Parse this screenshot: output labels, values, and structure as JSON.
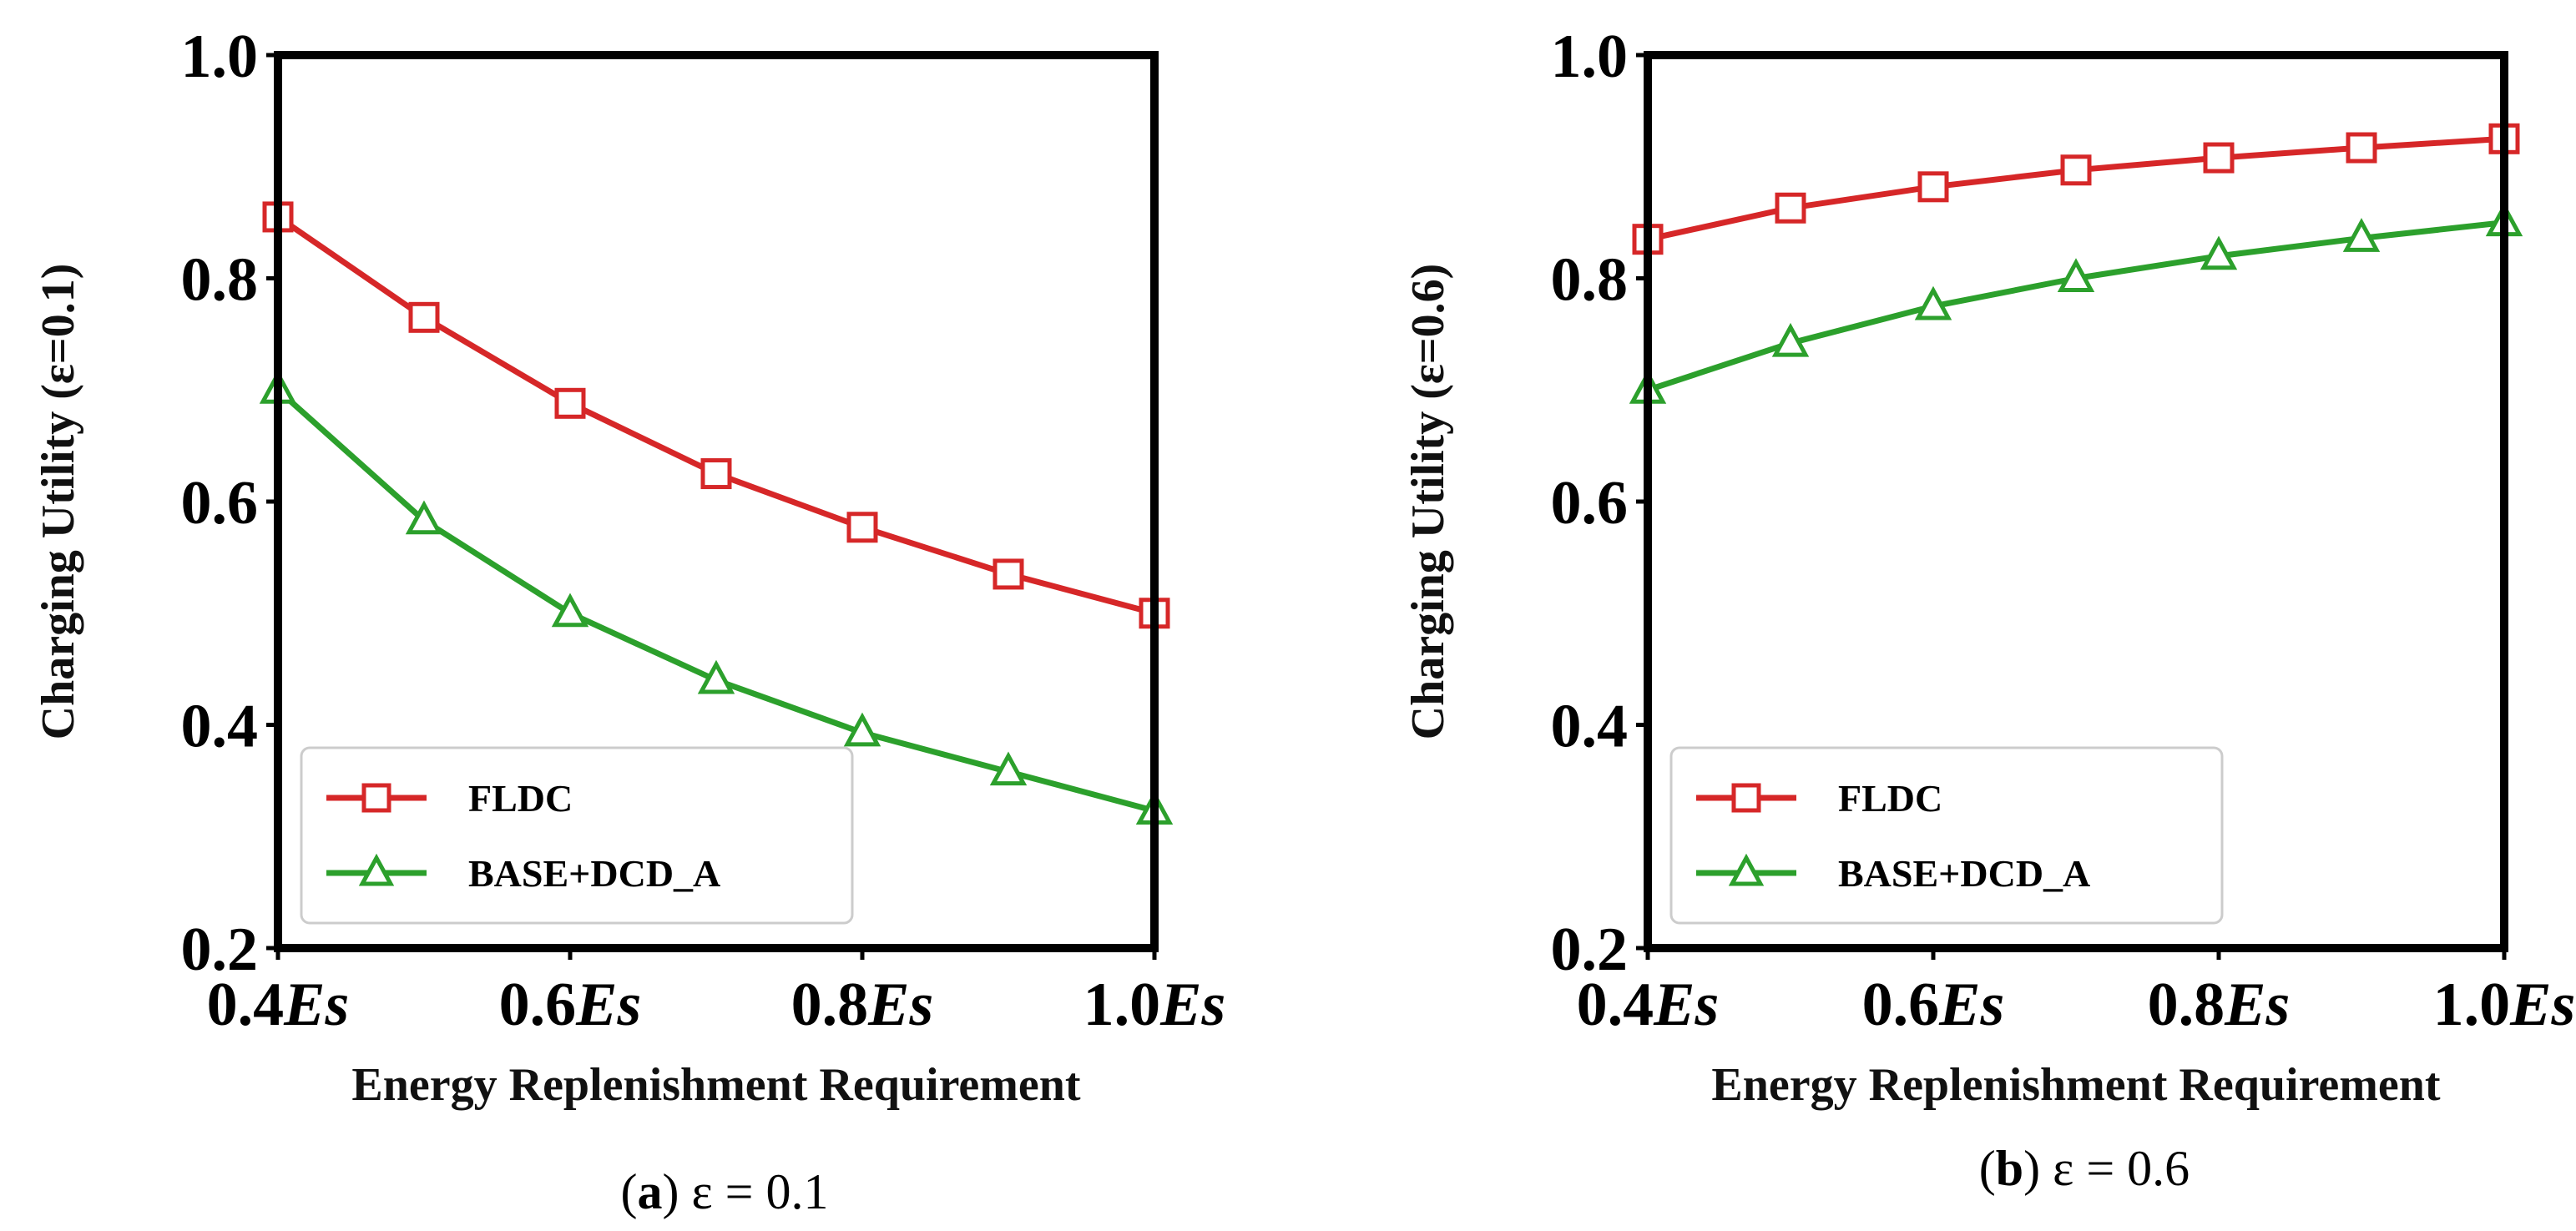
{
  "chart_data": [
    {
      "type": "line",
      "panel_label": "a",
      "caption_rest": "ε = 0.1",
      "ylabel": "Charging Utility (ε=0.1)",
      "xlabel": "Energy Replenishment Requirement",
      "x": [
        0.4,
        0.5,
        0.6,
        0.7,
        0.8,
        0.9,
        1.0
      ],
      "xlim": [
        0.4,
        1.0
      ],
      "ylim": [
        0.2,
        1.0
      ],
      "xticks": [
        0.4,
        0.6,
        0.8,
        1.0
      ],
      "xtick_labels": [
        "0.4",
        "0.6",
        "0.8",
        "1.0"
      ],
      "xtick_suffix": "Es",
      "yticks": [
        0.2,
        0.4,
        0.6,
        0.8,
        1.0
      ],
      "ytick_labels": [
        "0.2",
        "0.4",
        "0.6",
        "0.8",
        "1.0"
      ],
      "legend_position": "lower-left",
      "series": [
        {
          "name": "FLDC",
          "color": "#d62728",
          "marker": "square",
          "values": [
            0.855,
            0.765,
            0.688,
            0.625,
            0.577,
            0.535,
            0.5
          ]
        },
        {
          "name": "BASE+DCD_A",
          "color": "#2ca02c",
          "marker": "triangle",
          "values": [
            0.7,
            0.583,
            0.5,
            0.44,
            0.393,
            0.358,
            0.323
          ]
        }
      ]
    },
    {
      "type": "line",
      "panel_label": "b",
      "caption_rest": "ε = 0.6",
      "ylabel": "Charging Utility (ε=0.6)",
      "xlabel": "Energy Replenishment Requirement",
      "x": [
        0.4,
        0.5,
        0.6,
        0.7,
        0.8,
        0.9,
        1.0
      ],
      "xlim": [
        0.4,
        1.0
      ],
      "ylim": [
        0.2,
        1.0
      ],
      "xticks": [
        0.4,
        0.6,
        0.8,
        1.0
      ],
      "xtick_labels": [
        "0.4",
        "0.6",
        "0.8",
        "1.0"
      ],
      "xtick_suffix": "Es",
      "yticks": [
        0.2,
        0.4,
        0.6,
        0.8,
        1.0
      ],
      "ytick_labels": [
        "0.2",
        "0.4",
        "0.6",
        "0.8",
        "1.0"
      ],
      "legend_position": "lower-left",
      "series": [
        {
          "name": "FLDC",
          "color": "#d62728",
          "marker": "square",
          "values": [
            0.835,
            0.863,
            0.882,
            0.897,
            0.908,
            0.917,
            0.925
          ]
        },
        {
          "name": "BASE+DCD_A",
          "color": "#2ca02c",
          "marker": "triangle",
          "values": [
            0.7,
            0.742,
            0.775,
            0.8,
            0.82,
            0.836,
            0.85
          ]
        }
      ]
    }
  ]
}
